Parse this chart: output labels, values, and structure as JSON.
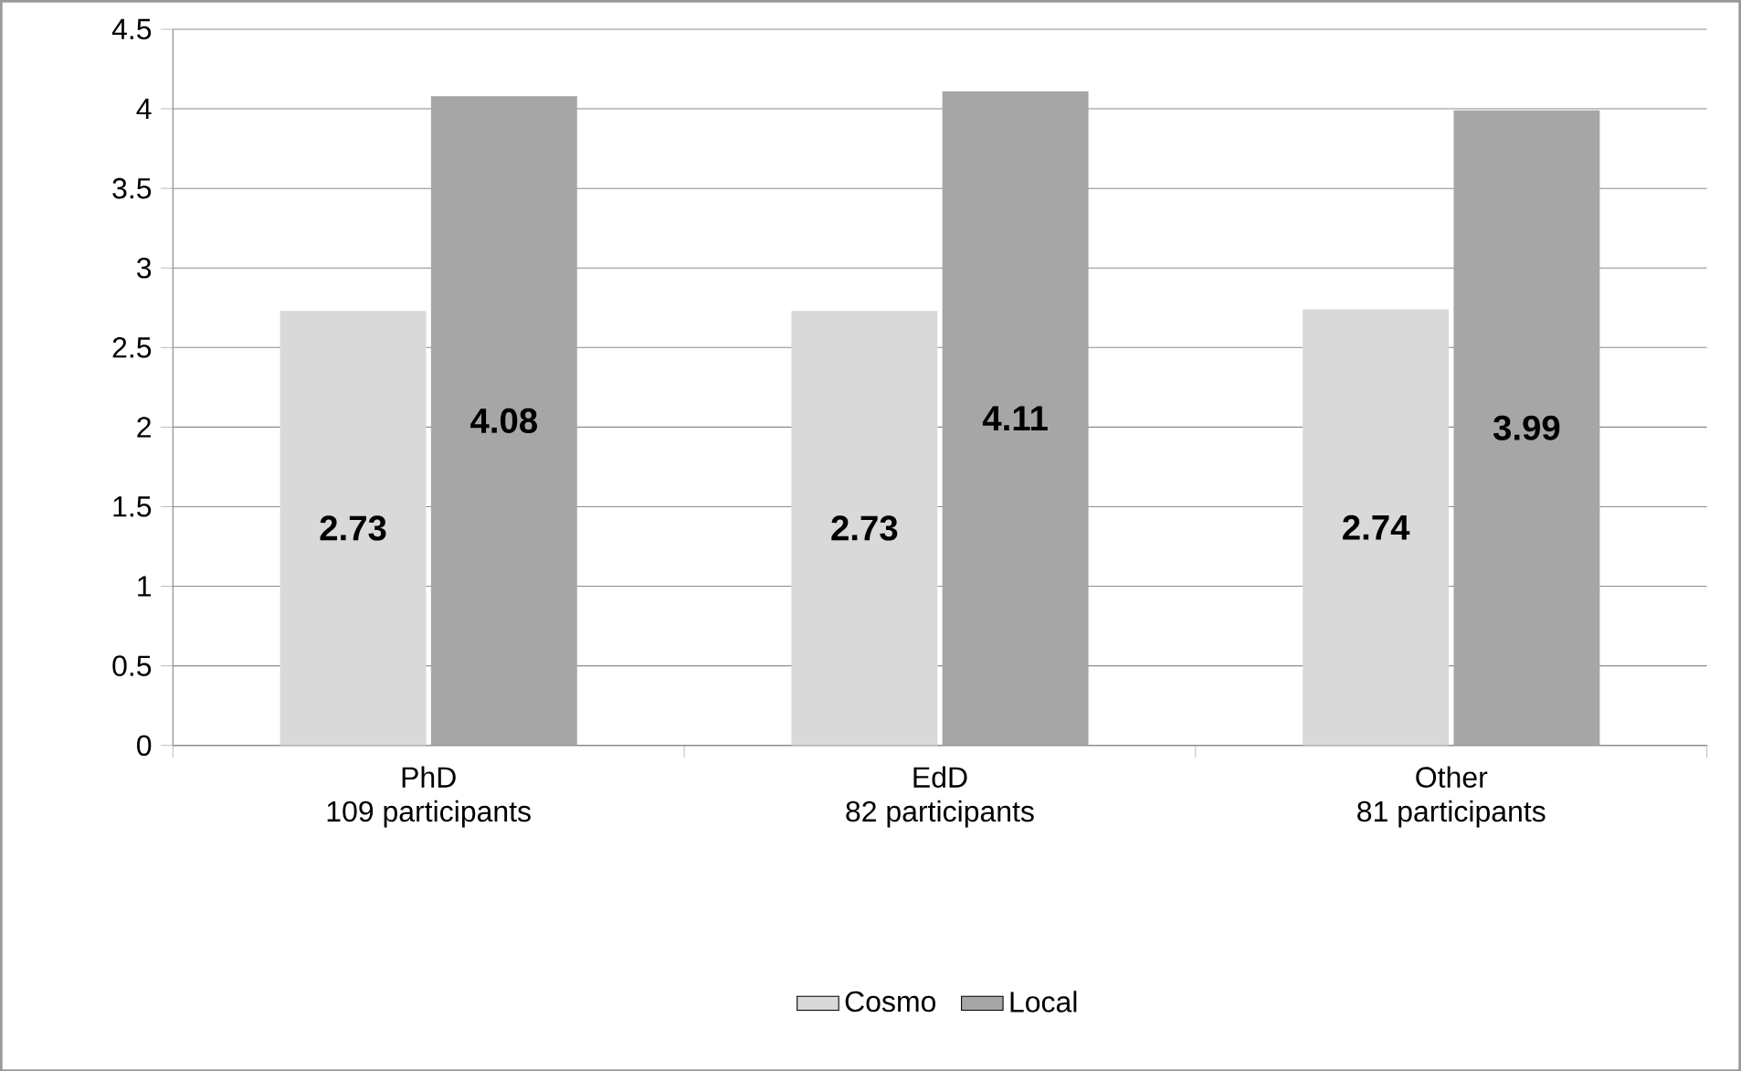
{
  "chart_data": {
    "type": "bar",
    "categories": [
      "PhD\n109 participants",
      "EdD\n82 participants",
      "Other\n81 participants"
    ],
    "series": [
      {
        "name": "Cosmo",
        "color": "#d9d9d9",
        "values": [
          2.73,
          2.73,
          2.74
        ]
      },
      {
        "name": "Local",
        "color": "#a6a6a6",
        "values": [
          4.08,
          4.11,
          3.99
        ]
      }
    ],
    "ylim": [
      0,
      4.5
    ],
    "yticks": [
      0,
      0.5,
      1,
      1.5,
      2,
      2.5,
      3,
      3.5,
      4,
      4.5
    ],
    "grid": "y",
    "legend": "bottom",
    "data_labels": true
  }
}
